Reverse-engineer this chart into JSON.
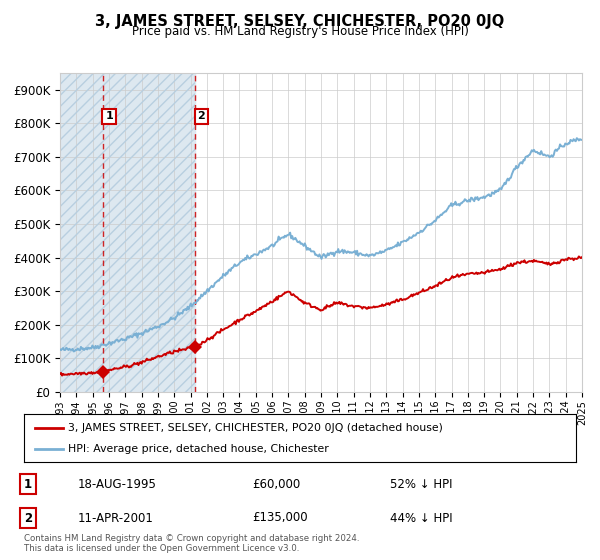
{
  "title": "3, JAMES STREET, SELSEY, CHICHESTER, PO20 0JQ",
  "subtitle": "Price paid vs. HM Land Registry's House Price Index (HPI)",
  "x_start_year": 1993,
  "x_end_year": 2025,
  "ylim": [
    0,
    950000
  ],
  "yticks": [
    0,
    100000,
    200000,
    300000,
    400000,
    500000,
    600000,
    700000,
    800000,
    900000
  ],
  "ytick_labels": [
    "£0",
    "£100K",
    "£200K",
    "£300K",
    "£400K",
    "£500K",
    "£600K",
    "£700K",
    "£800K",
    "£900K"
  ],
  "sale1_year": 1995.625,
  "sale1_price": 60000,
  "sale1_label": "1",
  "sale1_date": "18-AUG-1995",
  "sale1_price_str": "£60,000",
  "sale1_pct": "52% ↓ HPI",
  "sale2_year": 2001.274,
  "sale2_price": 135000,
  "sale2_label": "2",
  "sale2_date": "11-APR-2001",
  "sale2_price_str": "£135,000",
  "sale2_pct": "44% ↓ HPI",
  "hatch_color": "#b8cfe0",
  "hatch_bg": "#dde8f0",
  "grid_color": "#cccccc",
  "sale_marker_color": "#cc0000",
  "hpi_line_color": "#7ab0d4",
  "price_line_color": "#cc0000",
  "legend1_label": "3, JAMES STREET, SELSEY, CHICHESTER, PO20 0JQ (detached house)",
  "legend2_label": "HPI: Average price, detached house, Chichester",
  "footer": "Contains HM Land Registry data © Crown copyright and database right 2024.\nThis data is licensed under the Open Government Licence v3.0.",
  "background_color": "#ffffff"
}
